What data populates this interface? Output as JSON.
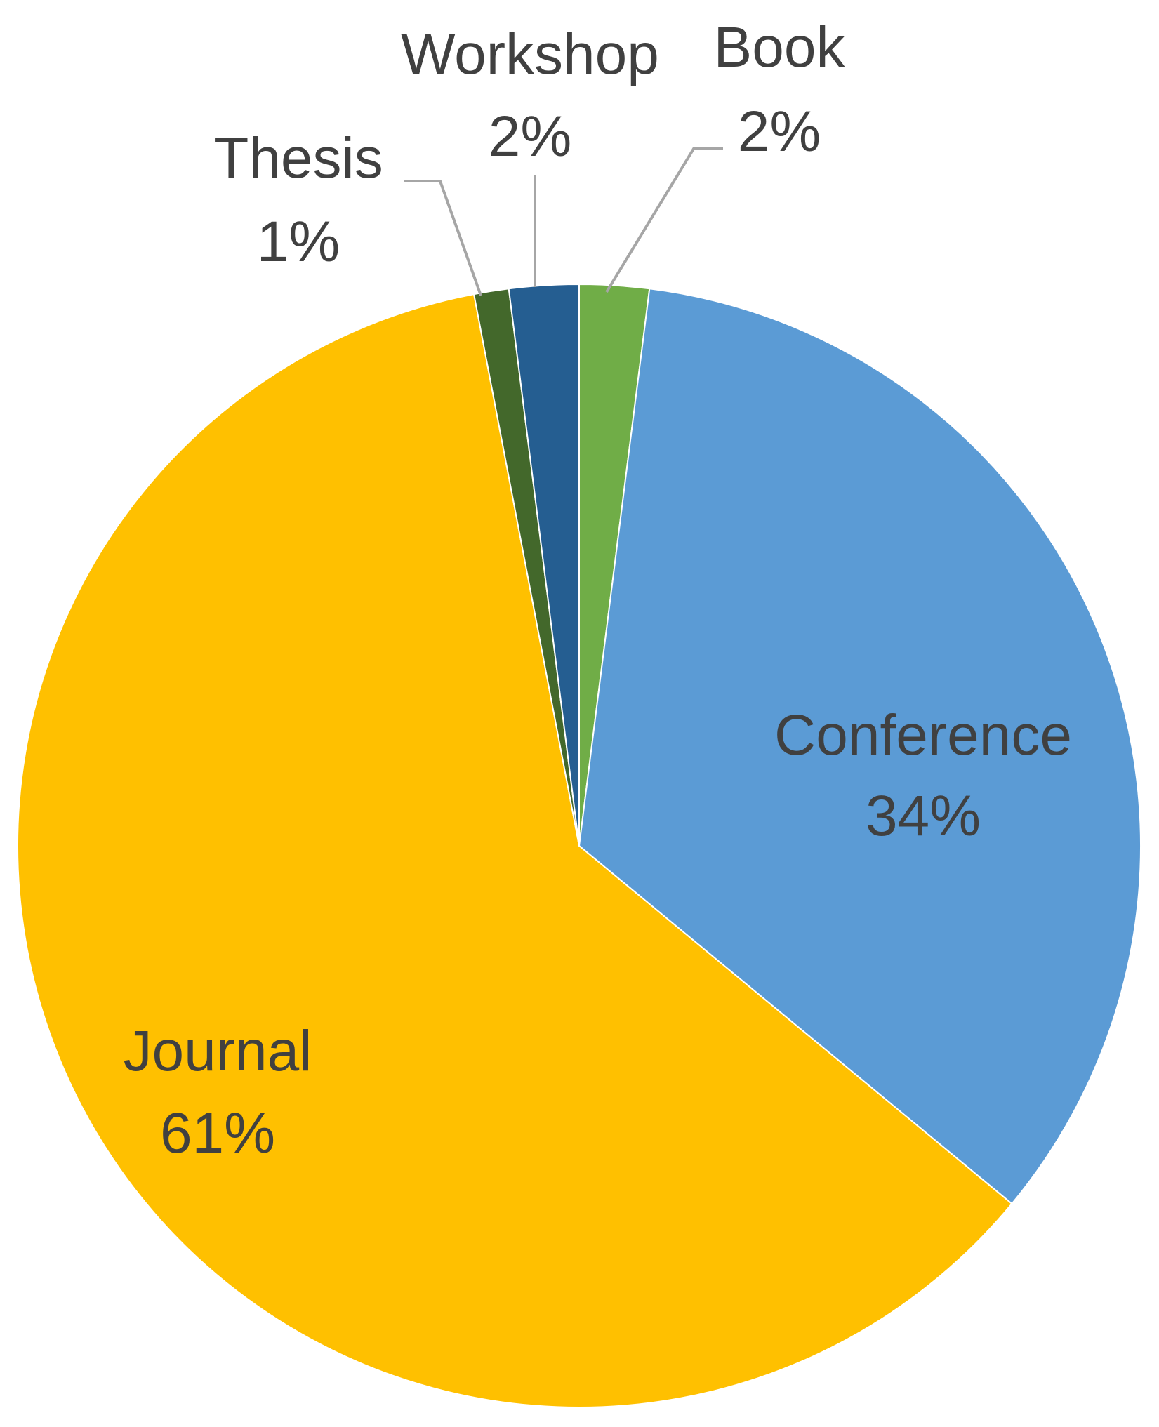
{
  "chart_data": {
    "type": "pie",
    "title": "",
    "slices": [
      {
        "label": "Book",
        "value": 2,
        "percent_label": "2%",
        "color": "#70AD47"
      },
      {
        "label": "Conference",
        "value": 34,
        "percent_label": "34%",
        "color": "#5B9BD5"
      },
      {
        "label": "Journal",
        "value": 61,
        "percent_label": "61%",
        "color": "#FFC000"
      },
      {
        "label": "Thesis",
        "value": 1,
        "percent_label": "1%",
        "color": "#43682B"
      },
      {
        "label": "Workshop",
        "value": 2,
        "percent_label": "2%",
        "color": "#255E91"
      }
    ],
    "start_angle_deg": 0,
    "direction": "clockwise",
    "leader_line_color": "#A6A6A6",
    "legend": "none",
    "data_labels": "category and percentage"
  }
}
